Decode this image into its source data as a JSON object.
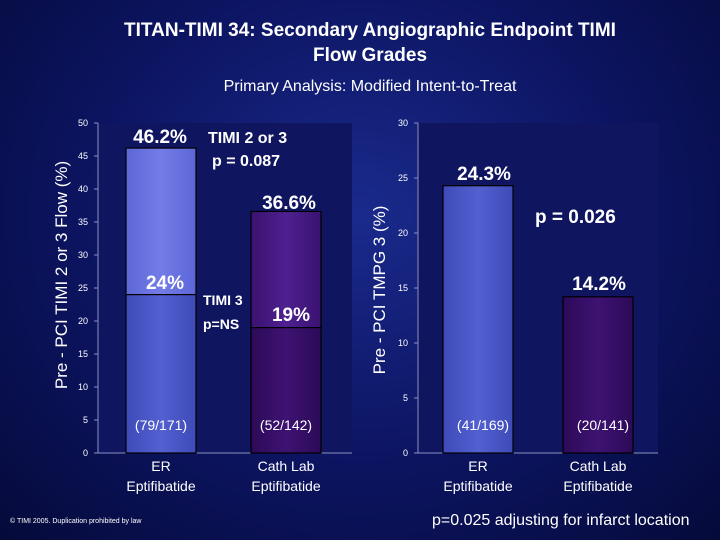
{
  "title": "TITAN-TIMI 34: Secondary Angiographic Endpoint TIMI\nFlow Grades",
  "subtitle": "Primary Analysis: Modified Intent-to-Treat",
  "copyright": "© TIMI 2005. Duplication prohibited by law",
  "footnote": "p=0.025 adjusting for infarct location",
  "colors": {
    "blue_bar": "#4d5acb",
    "blue_top": "#6a72e0",
    "purple_bar": "#3a0f6e",
    "purple_top": "#4c1c88",
    "plot_bg": "#101560"
  },
  "chart_data": [
    {
      "type": "bar",
      "ylabel": "Pre - PCI TIMI 2 or 3 Flow (%)",
      "ylim": [
        0,
        50
      ],
      "yticks": [
        "0",
        "5",
        "10",
        "15",
        "20",
        "25",
        "30",
        "35",
        "40",
        "45",
        "50"
      ],
      "categories": [
        "ER\nEptifibatide",
        "Cath Lab\nEptifibatide"
      ],
      "series": [
        {
          "values": [
            24,
            19
          ],
          "labels": [
            "24%",
            "19%"
          ]
        },
        {
          "values": [
            46.2,
            36.6
          ],
          "labels": [
            "46.2%",
            "36.6%"
          ]
        }
      ],
      "counts": [
        "(79/171)",
        "(52/142)"
      ],
      "annotations": [
        {
          "text": "TIMI 2 or 3",
          "anchor": "right-of-46.2"
        },
        {
          "text": "p = 0.087",
          "anchor": "below-TIMI-2-or-3"
        },
        {
          "text": "TIMI 3",
          "anchor": "between-bars"
        },
        {
          "text": "p=NS",
          "anchor": "between-bars"
        }
      ],
      "grid": false
    },
    {
      "type": "bar",
      "ylabel": "Pre - PCI TMPG 3 (%)",
      "ylim": [
        0,
        30
      ],
      "yticks": [
        "0",
        "5",
        "10",
        "15",
        "20",
        "25",
        "30"
      ],
      "categories": [
        "ER\nEptifibatide",
        "Cath Lab\nEptifibatide"
      ],
      "values": [
        24.3,
        14.2
      ],
      "labels": [
        "24.3%",
        "14.2%"
      ],
      "counts": [
        "(41/169)",
        "(20/141)"
      ],
      "annotations": [
        {
          "text": "p = 0.026"
        }
      ],
      "grid": false
    }
  ]
}
